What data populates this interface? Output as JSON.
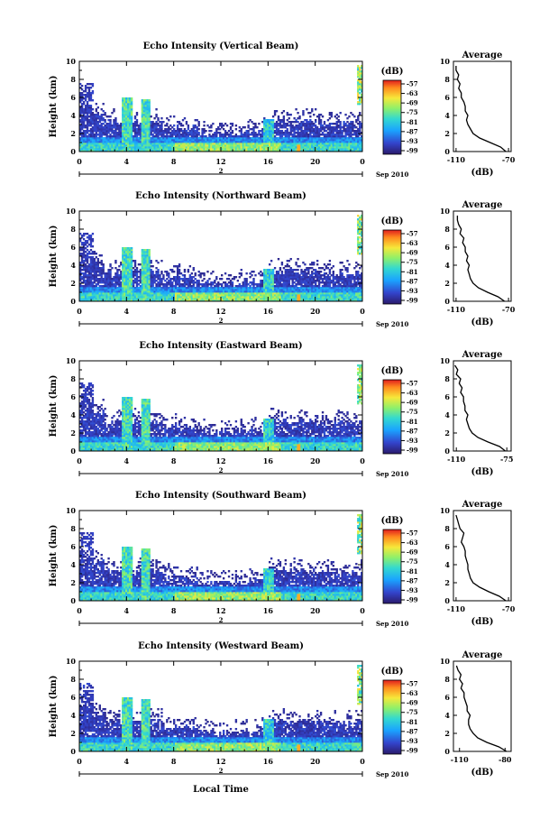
{
  "figure": {
    "xlabel": "Local Time",
    "date_label": "Sep 2010",
    "ylabel": "Height (km)",
    "day_label": "2",
    "colorbar_label": "(dB)",
    "colorbar_ticks": [
      "-57",
      "-63",
      "-69",
      "-75",
      "-81",
      "-87",
      "-93",
      "-99"
    ],
    "avg_title": "Average",
    "avg_xlabel": "(dB)"
  },
  "chart_data": [
    {
      "type": "heatmap",
      "title": "Echo Intensity (Vertical Beam)",
      "xlabel": "Local Time",
      "ylabel": "Height (km)",
      "x_ticks": [
        "0",
        "4",
        "8",
        "12",
        "16",
        "20",
        "0"
      ],
      "y_ticks": [
        "0",
        "2",
        "4",
        "6",
        "8",
        "10"
      ],
      "xlim": [
        0,
        24
      ],
      "ylim": [
        0,
        10
      ],
      "colorbar": {
        "label": "(dB)",
        "range": [
          -99,
          -57
        ]
      },
      "average_profile": {
        "title": "Average",
        "xlabel": "(dB)",
        "x_ticks": [
          "-110",
          "-70"
        ],
        "xlim": [
          -112,
          -68
        ],
        "height": [
          0,
          0.5,
          1,
          1.5,
          2,
          2.5,
          3,
          3.5,
          4,
          4.5,
          5,
          5.5,
          6,
          6.5,
          7,
          7.5,
          8,
          8.5,
          9,
          9.5
        ],
        "value": [
          -72,
          -76,
          -84,
          -92,
          -97,
          -99,
          -101,
          -102,
          -101,
          -103,
          -103,
          -104,
          -106,
          -106,
          -108,
          -107,
          -109,
          -108,
          -110,
          -110
        ]
      }
    },
    {
      "type": "heatmap",
      "title": "Echo Intensity (Northward Beam)",
      "xlabel": "Local Time",
      "ylabel": "Height (km)",
      "x_ticks": [
        "0",
        "4",
        "8",
        "12",
        "16",
        "20",
        "0"
      ],
      "y_ticks": [
        "0",
        "2",
        "4",
        "6",
        "8",
        "10"
      ],
      "xlim": [
        0,
        24
      ],
      "ylim": [
        0,
        10
      ],
      "colorbar": {
        "label": "(dB)",
        "range": [
          -99,
          -57
        ]
      },
      "average_profile": {
        "title": "Average",
        "xlabel": "(dB)",
        "x_ticks": [
          "-110",
          "-70"
        ],
        "xlim": [
          -112,
          -68
        ],
        "height": [
          0,
          0.5,
          1,
          1.5,
          2,
          2.5,
          3,
          3.5,
          4,
          4.5,
          5,
          5.5,
          6,
          6.5,
          7,
          7.5,
          8,
          8.5,
          9,
          9.5
        ],
        "value": [
          -73,
          -78,
          -86,
          -93,
          -97,
          -99,
          -100,
          -101,
          -100,
          -102,
          -101,
          -103,
          -103,
          -105,
          -104,
          -107,
          -106,
          -108,
          -109,
          -109
        ]
      }
    },
    {
      "type": "heatmap",
      "title": "Echo Intensity (Eastward Beam)",
      "xlabel": "Local Time",
      "ylabel": "Height (km)",
      "x_ticks": [
        "0",
        "4",
        "8",
        "12",
        "16",
        "20",
        "0"
      ],
      "y_ticks": [
        "0",
        "2",
        "4",
        "6",
        "8",
        "10"
      ],
      "xlim": [
        0,
        24
      ],
      "ylim": [
        0,
        10
      ],
      "colorbar": {
        "label": "(dB)",
        "range": [
          -99,
          -57
        ]
      },
      "average_profile": {
        "title": "Average",
        "xlabel": "(dB)",
        "x_ticks": [
          "-110",
          "-75"
        ],
        "xlim": [
          -112,
          -72
        ],
        "height": [
          0,
          0.5,
          1,
          1.5,
          2,
          2.5,
          3,
          3.5,
          4,
          4.5,
          5,
          5.5,
          6,
          6.5,
          7,
          7.5,
          8,
          8.5,
          9,
          9.5
        ],
        "value": [
          -76,
          -80,
          -88,
          -95,
          -99,
          -101,
          -102,
          -103,
          -102,
          -104,
          -104,
          -105,
          -105,
          -107,
          -106,
          -108,
          -107,
          -110,
          -109,
          -111
        ]
      }
    },
    {
      "type": "heatmap",
      "title": "Echo Intensity (Southward Beam)",
      "xlabel": "Local Time",
      "ylabel": "Height (km)",
      "x_ticks": [
        "0",
        "4",
        "8",
        "12",
        "16",
        "20",
        "0"
      ],
      "y_ticks": [
        "0",
        "2",
        "4",
        "6",
        "8",
        "10"
      ],
      "xlim": [
        0,
        24
      ],
      "ylim": [
        0,
        10
      ],
      "colorbar": {
        "label": "(dB)",
        "range": [
          -99,
          -57
        ]
      },
      "average_profile": {
        "title": "Average",
        "xlabel": "(dB)",
        "x_ticks": [
          "-110",
          "-70"
        ],
        "xlim": [
          -112,
          -68
        ],
        "height": [
          0,
          0.5,
          1,
          1.5,
          2,
          2.5,
          3,
          3.5,
          4,
          4.5,
          5,
          5.5,
          6,
          6.5,
          7,
          7.5,
          8,
          8.5,
          9,
          9.5
        ],
        "value": [
          -72,
          -77,
          -85,
          -92,
          -97,
          -99,
          -100,
          -101,
          -101,
          -102,
          -103,
          -103,
          -104,
          -106,
          -105,
          -104,
          -107,
          -108,
          -109,
          -110
        ]
      }
    },
    {
      "type": "heatmap",
      "title": "Echo Intensity (Westward Beam)",
      "xlabel": "Local Time",
      "ylabel": "Height (km)",
      "x_ticks": [
        "0",
        "4",
        "8",
        "12",
        "16",
        "20",
        "0"
      ],
      "y_ticks": [
        "0",
        "2",
        "4",
        "6",
        "8",
        "10"
      ],
      "xlim": [
        0,
        24
      ],
      "ylim": [
        0,
        10
      ],
      "colorbar": {
        "label": "(dB)",
        "range": [
          -99,
          -57
        ]
      },
      "average_profile": {
        "title": "Average",
        "xlabel": "(dB)",
        "x_ticks": [
          "-110",
          "-80"
        ],
        "xlim": [
          -114,
          -76
        ],
        "height": [
          0,
          0.5,
          1,
          1.5,
          2,
          2.5,
          3,
          3.5,
          4,
          4.5,
          5,
          5.5,
          6,
          6.5,
          7,
          7.5,
          8,
          8.5,
          9,
          9.5
        ],
        "value": [
          -79,
          -84,
          -92,
          -98,
          -101,
          -103,
          -104,
          -104,
          -103,
          -105,
          -105,
          -106,
          -107,
          -107,
          -109,
          -108,
          -110,
          -109,
          -111,
          -112
        ]
      }
    }
  ]
}
